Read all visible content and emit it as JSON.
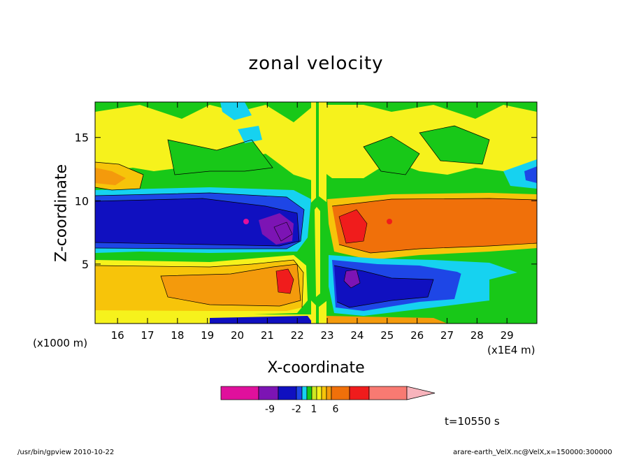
{
  "chart_data": {
    "type": "heatmap",
    "title": "zonal velocity",
    "xlabel": "X-coordinate",
    "ylabel": "Z-coordinate",
    "x_unit_left": "(x1000 m)",
    "x_unit_right": "(x1E4 m)",
    "xlim": [
      15.25,
      30.0
    ],
    "ylim": [
      0.3,
      17.8
    ],
    "x_ticks": [
      16,
      17,
      18,
      19,
      20,
      21,
      22,
      23,
      24,
      25,
      26,
      27,
      28,
      29
    ],
    "y_ticks": [
      5,
      10,
      15
    ],
    "time_label": "t=10550 s",
    "colorbar": {
      "colors": [
        "#e0109c",
        "#7c14b4",
        "#1010c0",
        "#1e46e6",
        "#16d2f0",
        "#18c818",
        "#cfe821",
        "#f6f21c",
        "#f7c40a",
        "#f49a0c",
        "#f0700a",
        "#f01c1c",
        "#f87a72",
        "#f8b4bc"
      ],
      "tick_labels": [
        "-9",
        "-2",
        "1",
        "6"
      ]
    },
    "bands_by_level": [
      {
        "z_range": [
          0.3,
          1.0
        ],
        "value": "strong jets near surface, sign flips at x=22.5"
      },
      {
        "z_range": [
          1.0,
          5.0
        ],
        "value_left": 6,
        "value_right": -6
      },
      {
        "z_range": [
          5.5,
          10.0
        ],
        "value_left": -6,
        "value_right": 6
      },
      {
        "z_range": [
          10.0,
          17.8
        ],
        "value": "weak, -2 to 1"
      }
    ],
    "extrema": [
      {
        "x": 21.5,
        "z": 6.8,
        "value": -9
      },
      {
        "x": 23.6,
        "z": 7.3,
        "value": 9
      },
      {
        "x": 21.6,
        "z": 3.2,
        "value": 9
      },
      {
        "x": 23.8,
        "z": 3.3,
        "value": -9
      }
    ]
  },
  "footer": {
    "left": "/usr/bin/gpview   2010-10-22",
    "right": "arare-earth_VelX.nc@VelX,x=150000:300000"
  }
}
